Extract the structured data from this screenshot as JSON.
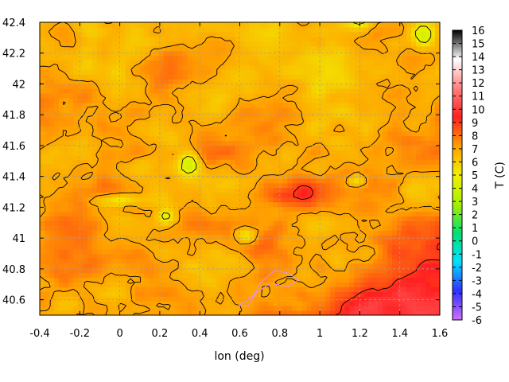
{
  "chart_data": {
    "type": "heatmap",
    "title": "",
    "xlabel": "lon (deg)",
    "ylabel": "",
    "colorbar_label": "T (C)",
    "x_ticks": [
      "-0.4",
      "-0.2",
      "0",
      "0.2",
      "0.4",
      "0.6",
      "0.8",
      "1",
      "1.2",
      "1.4",
      "1.6"
    ],
    "y_ticks": [
      "40.6",
      "40.8",
      "41",
      "41.2",
      "41.4",
      "41.6",
      "41.8",
      "42",
      "42.2",
      "42.4"
    ],
    "colorbar_ticks": [
      "16",
      "15",
      "14",
      "13",
      "12",
      "11",
      "10",
      "9",
      "8",
      "7",
      "6",
      "5",
      "4",
      "3",
      "2",
      "1",
      "0",
      "-1",
      "-2",
      "-3",
      "-4",
      "-5",
      "-6"
    ],
    "xlim": [
      -0.4,
      1.6
    ],
    "ylim": [
      40.5,
      42.4
    ],
    "clim": [
      -6,
      16
    ],
    "grid": true,
    "colormap": [
      "#d070ff",
      "#3030ff",
      "#00e0ff",
      "#00e070",
      "#a8f000",
      "#f0f000",
      "#ffa000",
      "#ff2020",
      "#ff8080",
      "#ffffff",
      "#000000"
    ],
    "contour_color": "#000000",
    "special_contour_color": "#e090ff"
  }
}
